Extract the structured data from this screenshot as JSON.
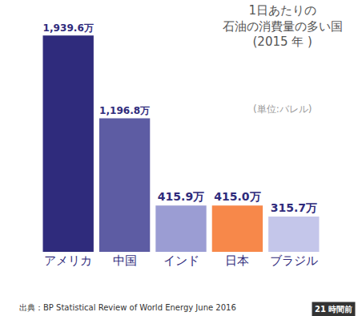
{
  "chart_data": {
    "type": "bar",
    "title": "1日あたりの\n石油の消費量の多い国\n(2015 年 )",
    "subtitle": "(単位:バレル)",
    "source": "出典：BP Statistical Review of World Energy June 2016",
    "annotations": [
      "21 時間前"
    ],
    "categories": [
      "アメリカ",
      "中国",
      "インド",
      "日本",
      "ブラジル"
    ],
    "values": [
      1939.6,
      1196.8,
      415.9,
      415.0,
      315.7
    ],
    "value_labels": [
      "1,939.6万",
      "1,196.8万",
      "415.9万",
      "415.0万",
      "315.7万"
    ],
    "colors": [
      "#2f2b7c",
      "#5d5ca3",
      "#9b9dd3",
      "#f7884a",
      "#c4c6ea"
    ],
    "data_labels": true,
    "tick_labels": "x",
    "grid": false
  }
}
